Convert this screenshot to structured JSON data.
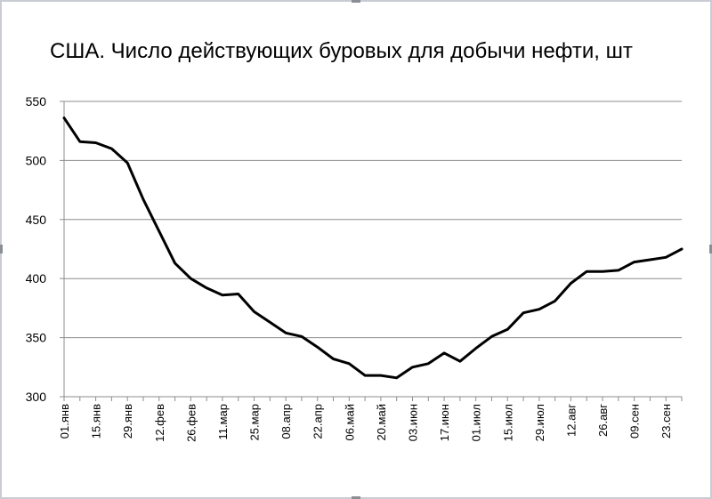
{
  "chart_data": {
    "type": "line",
    "title": "США. Число действующих буровых для добычи нефти, шт",
    "xlabel": "",
    "ylabel": "",
    "ylim": [
      300,
      550
    ],
    "yticks": [
      300,
      350,
      400,
      450,
      500,
      550
    ],
    "grid": true,
    "legend": "none",
    "line_color": "#000000",
    "x_ticklabels": [
      "01.янв",
      "15.янв",
      "29.янв",
      "12.фев",
      "26.фев",
      "11.мар",
      "25.мар",
      "08.апр",
      "22.апр",
      "06.май",
      "20.май",
      "03.июн",
      "17.июн",
      "01.июл",
      "15.июл",
      "29.июл",
      "12.авг",
      "26.авг",
      "09.сен",
      "23.сен"
    ],
    "x": [
      "01.янв",
      "08.янв",
      "15.янв",
      "22.янв",
      "29.янв",
      "05.фев",
      "12.фев",
      "19.фев",
      "26.фев",
      "04.мар",
      "11.мар",
      "18.мар",
      "25.мар",
      "01.апр",
      "08.апр",
      "15.апр",
      "22.апр",
      "29.апр",
      "06.май",
      "13.май",
      "20.май",
      "27.май",
      "03.июн",
      "10.июн",
      "17.июн",
      "24.июн",
      "01.июл",
      "08.июл",
      "15.июл",
      "22.июл",
      "29.июл",
      "05.авг",
      "12.авг",
      "19.авг",
      "26.авг",
      "02.сен",
      "09.сен",
      "16.сен",
      "23.сен",
      "30.сен"
    ],
    "values": [
      536,
      516,
      515,
      510,
      498,
      467,
      440,
      413,
      400,
      392,
      386,
      387,
      372,
      363,
      354,
      351,
      342,
      332,
      328,
      318,
      318,
      316,
      325,
      328,
      337,
      330,
      341,
      351,
      357,
      371,
      374,
      381,
      396,
      406,
      406,
      407,
      414,
      416,
      418,
      425
    ]
  }
}
